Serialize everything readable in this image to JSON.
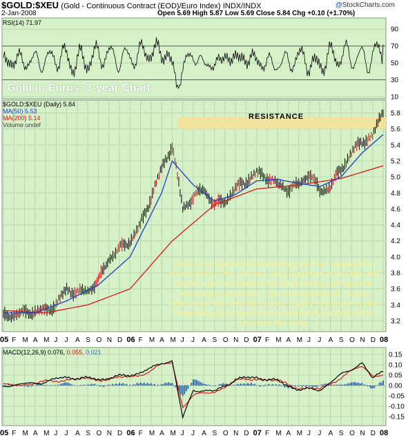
{
  "header": {
    "symbol": "$GOLD:$XEU",
    "description": "(Gold - Continuous Contract (EOD)/Euro Index)",
    "exchange": "INDX/INDX",
    "date": "2-Jan-2008",
    "ohlc": "Open 5.69  High 5.87  Low 5.69  Close 5.84  Chg +0.10 (+1.70%)",
    "brand_name": "StockCharts.com",
    "brand_dot": "@"
  },
  "headline": "Gold in Euros: 3-year Chart",
  "callout": "Gold is on the point of breaking out even against the strong Euro. This will be a very important event that will signal a general bullmarket advance by gold against almost all currencies. This development of course reflects the fact that the money supply in Europe is also expanding at a rapid rate as competitive devaluation becomes the norm.",
  "resistance_label": "RESISTANCE",
  "colors": {
    "panel_bg": "#d6f0c8",
    "grid": "#b8d8b0",
    "price": "#000000",
    "ma50": "#1f3cc4",
    "ma200": "#d41818",
    "resistance_band": "#f5e29a",
    "rsi_fill": "#1e6b1e",
    "macd_hist": "#3a6fb0",
    "signal": "#d41818"
  },
  "chart_data": [
    {
      "type": "line",
      "panel": "rsi",
      "legend": "RSI(14) 71.97",
      "ylim": [
        10,
        100
      ],
      "y_ticks": [
        "90",
        "70",
        "50",
        "30",
        "10"
      ],
      "reference_lines": [
        70,
        30
      ],
      "last_value": 71.97
    },
    {
      "type": "line",
      "panel": "price",
      "legend": "$GOLD:$XEU (Daily) 5.84",
      "ylim": [
        3.1,
        5.9
      ],
      "y_ticks": [
        "5.8",
        "5.6",
        "5.4",
        "5.2",
        "5.0",
        "4.8",
        "4.6",
        "4.4",
        "4.2",
        "4.0",
        "3.8",
        "3.6",
        "3.4",
        "3.2"
      ],
      "x_ticks": [
        "05",
        "F",
        "M",
        "A",
        "M",
        "J",
        "J",
        "A",
        "S",
        "O",
        "N",
        "D",
        "06",
        "F",
        "M",
        "A",
        "M",
        "J",
        "J",
        "A",
        "S",
        "O",
        "N",
        "D",
        "07",
        "F",
        "M",
        "A",
        "M",
        "J",
        "J",
        "A",
        "S",
        "O",
        "N",
        "D",
        "08"
      ],
      "resistance_range": [
        5.6,
        5.75
      ],
      "series": [
        {
          "name": "$GOLD:$XEU",
          "style": "bars",
          "x": [
            0,
            1,
            2,
            3,
            4,
            5,
            6,
            7,
            8,
            9,
            10,
            11,
            12,
            13,
            14,
            15,
            16,
            17,
            18,
            19,
            20,
            21,
            22,
            23,
            24,
            25,
            26,
            27,
            28,
            29,
            30,
            31,
            32,
            33,
            34,
            35,
            36
          ],
          "values": [
            3.25,
            3.28,
            3.3,
            3.32,
            3.33,
            3.4,
            3.6,
            3.55,
            3.58,
            3.7,
            3.98,
            4.1,
            4.2,
            4.4,
            4.75,
            5.1,
            5.4,
            4.6,
            4.75,
            4.85,
            4.65,
            4.7,
            4.85,
            4.95,
            5.05,
            5.0,
            4.9,
            4.85,
            4.9,
            5.05,
            4.82,
            4.88,
            5.1,
            5.3,
            5.45,
            5.5,
            5.84
          ]
        },
        {
          "name": "MA(50) 5.53",
          "x": [
            0,
            3,
            6,
            9,
            12,
            15,
            16,
            18,
            20,
            22,
            24,
            26,
            28,
            30,
            32,
            34,
            36
          ],
          "values": [
            3.3,
            3.3,
            3.45,
            3.65,
            4.0,
            4.8,
            5.2,
            4.9,
            4.7,
            4.78,
            4.95,
            4.97,
            4.92,
            4.88,
            5.0,
            5.3,
            5.53
          ]
        },
        {
          "name": "MA(200) 5.14",
          "x": [
            0,
            4,
            8,
            12,
            16,
            20,
            24,
            28,
            32,
            36
          ],
          "values": [
            3.33,
            3.3,
            3.4,
            3.6,
            4.2,
            4.65,
            4.85,
            4.9,
            4.98,
            5.14
          ]
        }
      ]
    },
    {
      "type": "line",
      "panel": "macd",
      "legend": "MACD(12,26,9) 0.076, 0.055, 0.021",
      "legend_macd": "MACD(12,26,9) 0.076,",
      "legend_signal": "0.055,",
      "legend_hist": "0.021",
      "ylim": [
        -0.18,
        0.16
      ],
      "y_ticks": [
        "0.15",
        "0.10",
        "0.05",
        "0.00",
        "-0.05",
        "-0.10",
        "-0.15"
      ],
      "x_ticks": [
        "05",
        "F",
        "M",
        "A",
        "M",
        "J",
        "J",
        "A",
        "S",
        "O",
        "N",
        "D",
        "06",
        "F",
        "M",
        "A",
        "M",
        "J",
        "J",
        "A",
        "S",
        "O",
        "N",
        "D",
        "07",
        "F",
        "M",
        "A",
        "M",
        "J",
        "J",
        "A",
        "S",
        "O",
        "N",
        "D",
        "08"
      ],
      "series": [
        {
          "name": "MACD",
          "x": [
            0,
            3,
            6,
            9,
            12,
            14,
            15,
            16,
            17,
            18,
            20,
            22,
            24,
            26,
            28,
            30,
            32,
            33,
            34,
            35,
            36
          ],
          "values": [
            0.0,
            0.01,
            0.04,
            0.03,
            0.05,
            0.08,
            0.11,
            0.12,
            -0.16,
            -0.02,
            -0.03,
            0.03,
            0.04,
            0.02,
            -0.02,
            -0.02,
            0.05,
            0.08,
            0.11,
            0.03,
            0.076
          ]
        },
        {
          "name": "Signal",
          "x": [
            0,
            3,
            6,
            9,
            12,
            14,
            15,
            16,
            17,
            18,
            20,
            22,
            24,
            26,
            28,
            30,
            32,
            33,
            34,
            35,
            36
          ],
          "values": [
            0.0,
            0.01,
            0.03,
            0.03,
            0.04,
            0.07,
            0.1,
            0.11,
            -0.1,
            -0.05,
            -0.03,
            0.02,
            0.035,
            0.02,
            -0.01,
            -0.02,
            0.04,
            0.07,
            0.09,
            0.05,
            0.055
          ]
        }
      ]
    }
  ]
}
